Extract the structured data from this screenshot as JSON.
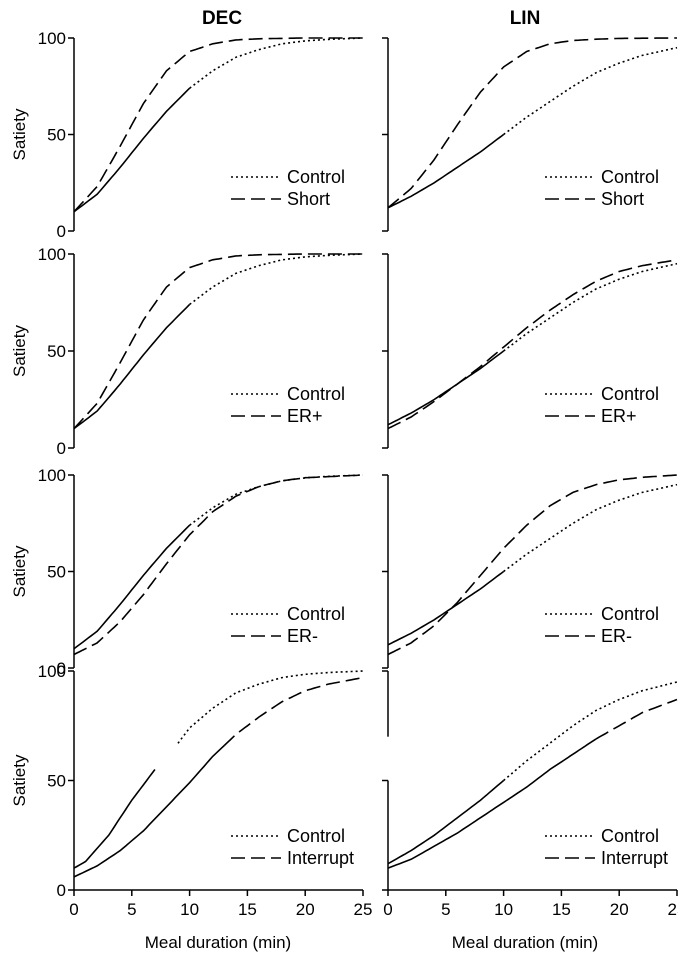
{
  "figure": {
    "column_titles": [
      "DEC",
      "LIN"
    ],
    "ylabel": "Satiety",
    "xlabel": "Meal duration (min)",
    "x_ticks": [
      "0",
      "5",
      "10",
      "15",
      "20",
      "25"
    ],
    "y_ticks": [
      "0",
      "50",
      "100"
    ]
  },
  "chart_data": [
    {
      "type": "line",
      "model": "DEC",
      "row": 1,
      "xlim": [
        0,
        25
      ],
      "ylim": [
        0,
        100
      ],
      "legend": [
        "Control",
        "Short"
      ],
      "legend_position": "bottom-right",
      "series": [
        {
          "name": "Control",
          "style": "dotted",
          "x": [
            0,
            2,
            4,
            6,
            8,
            10,
            12,
            14,
            16,
            18,
            20,
            22,
            25
          ],
          "y": [
            10,
            19,
            33,
            48,
            62,
            74,
            83,
            90,
            94,
            97,
            98.5,
            99.3,
            100
          ],
          "solid_until": 10
        },
        {
          "name": "Short",
          "style": "dashed",
          "x": [
            0,
            2,
            4,
            6,
            8,
            10,
            12,
            14,
            16,
            18,
            20,
            25
          ],
          "y": [
            10,
            23,
            44,
            66,
            83,
            93,
            97,
            99,
            99.6,
            99.8,
            100,
            100
          ],
          "solid_until": 0
        }
      ]
    },
    {
      "type": "line",
      "model": "LIN",
      "row": 1,
      "xlim": [
        0,
        25
      ],
      "ylim": [
        0,
        100
      ],
      "legend": [
        "Control",
        "Short"
      ],
      "legend_position": "bottom-right",
      "series": [
        {
          "name": "Control",
          "style": "dotted",
          "x": [
            0,
            2,
            4,
            6,
            8,
            10,
            12,
            14,
            16,
            18,
            20,
            22,
            25
          ],
          "y": [
            12,
            18,
            25,
            33,
            41,
            50,
            59,
            67,
            75,
            82,
            87,
            91,
            95
          ],
          "solid_until": 10
        },
        {
          "name": "Short",
          "style": "dashed",
          "x": [
            0,
            2,
            4,
            6,
            8,
            10,
            12,
            14,
            16,
            18,
            20,
            25
          ],
          "y": [
            12,
            22,
            37,
            55,
            72,
            85,
            93,
            97,
            98.7,
            99.4,
            99.8,
            100
          ],
          "solid_until": 0
        }
      ]
    },
    {
      "type": "line",
      "model": "DEC",
      "row": 2,
      "xlim": [
        0,
        25
      ],
      "ylim": [
        0,
        100
      ],
      "legend": [
        "Control",
        "ER+"
      ],
      "legend_position": "bottom-right",
      "series": [
        {
          "name": "Control",
          "style": "dotted",
          "x": [
            0,
            2,
            4,
            6,
            8,
            10,
            12,
            14,
            16,
            18,
            20,
            22,
            25
          ],
          "y": [
            10,
            19,
            33,
            48,
            62,
            74,
            83,
            90,
            94,
            97,
            98.5,
            99.3,
            100
          ],
          "solid_until": 10
        },
        {
          "name": "ER+",
          "style": "dashed",
          "x": [
            0,
            2,
            4,
            6,
            8,
            10,
            12,
            14,
            16,
            18,
            20,
            25
          ],
          "y": [
            10,
            23,
            44,
            66,
            83,
            93,
            97,
            99,
            99.6,
            99.8,
            100,
            100
          ],
          "solid_until": 0
        }
      ]
    },
    {
      "type": "line",
      "model": "LIN",
      "row": 2,
      "xlim": [
        0,
        25
      ],
      "ylim": [
        0,
        100
      ],
      "legend": [
        "Control",
        "ER+"
      ],
      "legend_position": "bottom-right",
      "series": [
        {
          "name": "Control",
          "style": "dotted",
          "x": [
            0,
            2,
            4,
            6,
            8,
            10,
            12,
            14,
            16,
            18,
            20,
            22,
            25
          ],
          "y": [
            12,
            18,
            25,
            33,
            41,
            50,
            59,
            67,
            75,
            82,
            87,
            91,
            95
          ],
          "solid_until": 10
        },
        {
          "name": "ER+",
          "style": "dashed",
          "x": [
            0,
            2,
            4,
            6,
            8,
            10,
            12,
            14,
            16,
            18,
            20,
            22,
            25
          ],
          "y": [
            10,
            16,
            24,
            33,
            42,
            52,
            62,
            71,
            79,
            86,
            91,
            94,
            97
          ],
          "solid_until": 0
        }
      ]
    },
    {
      "type": "line",
      "model": "DEC",
      "row": 3,
      "xlim": [
        0,
        25
      ],
      "ylim": [
        0,
        100
      ],
      "legend": [
        "Control",
        "ER-"
      ],
      "legend_position": "bottom-right",
      "series": [
        {
          "name": "Control",
          "style": "dotted",
          "x": [
            0,
            2,
            4,
            6,
            8,
            10,
            12,
            14,
            16,
            18,
            20,
            22,
            25
          ],
          "y": [
            10,
            19,
            33,
            48,
            62,
            74,
            83,
            90,
            94,
            97,
            98.5,
            99.3,
            100
          ],
          "solid_until": 10
        },
        {
          "name": "ER-",
          "style": "dashed",
          "x": [
            0,
            2,
            4,
            6,
            8,
            10,
            12,
            14,
            16,
            18,
            20,
            25
          ],
          "y": [
            7,
            13,
            24,
            38,
            54,
            69,
            81,
            89,
            94,
            97,
            98.6,
            100
          ],
          "solid_until": 0
        }
      ]
    },
    {
      "type": "line",
      "model": "LIN",
      "row": 3,
      "xlim": [
        0,
        25
      ],
      "ylim": [
        0,
        100
      ],
      "legend": [
        "Control",
        "ER-"
      ],
      "legend_position": "bottom-right",
      "series": [
        {
          "name": "Control",
          "style": "dotted",
          "x": [
            0,
            2,
            4,
            6,
            8,
            10,
            12,
            14,
            16,
            18,
            20,
            22,
            25
          ],
          "y": [
            12,
            18,
            25,
            33,
            41,
            50,
            59,
            67,
            75,
            82,
            87,
            91,
            95
          ],
          "solid_until": 10
        },
        {
          "name": "ER-",
          "style": "dashed",
          "x": [
            0,
            2,
            4,
            6,
            8,
            10,
            12,
            14,
            16,
            18,
            20,
            22,
            25
          ],
          "y": [
            7,
            13,
            22,
            34,
            48,
            62,
            74,
            84,
            91,
            95,
            97.5,
            98.8,
            100
          ],
          "solid_until": 0
        }
      ]
    },
    {
      "type": "line",
      "model": "DEC",
      "row": 4,
      "xlim": [
        0,
        25
      ],
      "ylim": [
        0,
        100
      ],
      "legend": [
        "Control",
        "Interrupt"
      ],
      "legend_position": "bottom-right",
      "series": [
        {
          "name": "Control",
          "style": "dotted",
          "x": [
            0,
            1,
            2,
            3,
            4,
            5,
            6,
            7,
            9,
            10,
            12,
            14,
            16,
            18,
            20,
            22,
            25
          ],
          "y": [
            10,
            13,
            19,
            25,
            33,
            41,
            48,
            55,
            67,
            74,
            83,
            90,
            94,
            97,
            98.5,
            99.3,
            100
          ],
          "solid_until": 7,
          "gap": [
            7,
            9
          ]
        },
        {
          "name": "Interrupt",
          "style": "dashed",
          "x": [
            0,
            2,
            4,
            6,
            8,
            10,
            12,
            14,
            16,
            18,
            20,
            22,
            25
          ],
          "y": [
            6,
            11,
            18,
            27,
            38,
            49,
            61,
            71,
            79,
            86,
            91,
            94,
            97
          ],
          "solid_until": 13
        }
      ]
    },
    {
      "type": "line",
      "model": "LIN",
      "row": 4,
      "xlim": [
        0,
        25
      ],
      "ylim": [
        0,
        100
      ],
      "legend": [
        "Control",
        "Interrupt"
      ],
      "legend_position": "bottom-right",
      "series": [
        {
          "name": "Control",
          "style": "dotted",
          "x": [
            0,
            2,
            4,
            6,
            8,
            10,
            12,
            14,
            16,
            18,
            20,
            22,
            25
          ],
          "y": [
            12,
            18,
            25,
            33,
            41,
            50,
            59,
            67,
            75,
            82,
            87,
            91,
            95
          ],
          "solid_until": 10
        },
        {
          "name": "Interrupt",
          "style": "dashed",
          "x": [
            0,
            2,
            4,
            6,
            8,
            10,
            12,
            14,
            16,
            18,
            20,
            22,
            25
          ],
          "y": [
            10,
            14,
            20,
            26,
            33,
            40,
            47,
            55,
            62,
            69,
            75,
            81,
            87
          ],
          "solid_until": 18
        }
      ]
    }
  ]
}
